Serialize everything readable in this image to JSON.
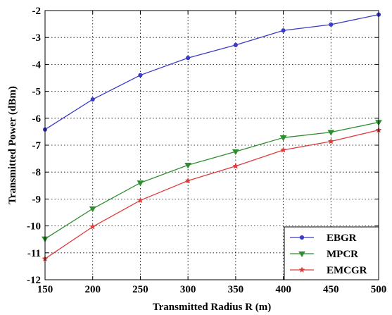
{
  "chart_data": {
    "type": "line",
    "title": "",
    "xlabel": "Transmitted Radius R (m)",
    "ylabel": "Transmitted Power (dBm)",
    "x": [
      150,
      200,
      250,
      300,
      350,
      400,
      450,
      500
    ],
    "xlim": [
      150,
      500
    ],
    "ylim": [
      -12,
      -2
    ],
    "xticks": [
      150,
      200,
      250,
      300,
      350,
      400,
      450,
      500
    ],
    "yticks": [
      -12,
      -11,
      -10,
      -9,
      -8,
      -7,
      -6,
      -5,
      -4,
      -3,
      -2
    ],
    "grid": true,
    "legend_position": "bottom-right",
    "series": [
      {
        "name": "EBGR",
        "color": "#3b3bc8",
        "marker": "circle",
        "values": [
          -6.42,
          -5.3,
          -4.4,
          -3.76,
          -3.28,
          -2.74,
          -2.52,
          -2.15
        ]
      },
      {
        "name": "MPCR",
        "color": "#2f8f2f",
        "marker": "triangle-down",
        "values": [
          -10.48,
          -9.36,
          -8.4,
          -7.74,
          -7.24,
          -6.72,
          -6.52,
          -6.15
        ]
      },
      {
        "name": "EMCGR",
        "color": "#e03a3a",
        "marker": "star",
        "values": [
          -11.22,
          -10.03,
          -9.05,
          -8.32,
          -7.78,
          -7.18,
          -6.86,
          -6.44
        ]
      }
    ]
  }
}
